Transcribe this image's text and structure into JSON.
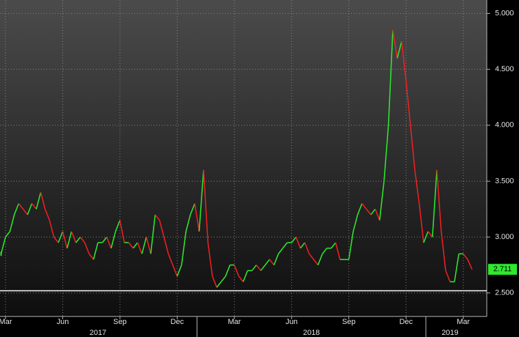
{
  "chart_data": {
    "type": "line",
    "categories": [
      null,
      "Mar",
      null,
      null,
      null,
      null,
      null,
      null,
      null,
      null,
      null,
      null,
      null,
      null,
      "Jun",
      null,
      null,
      null,
      null,
      null,
      null,
      null,
      null,
      null,
      null,
      null,
      null,
      "Sep",
      null,
      null,
      null,
      null,
      null,
      null,
      null,
      null,
      null,
      null,
      null,
      null,
      "Dec",
      null,
      null,
      null,
      null,
      null,
      null,
      null,
      null,
      null,
      null,
      null,
      null,
      "Mar",
      null,
      null,
      null,
      null,
      null,
      null,
      null,
      null,
      null,
      null,
      null,
      null,
      "Jun",
      null,
      null,
      null,
      null,
      null,
      null,
      null,
      null,
      null,
      null,
      null,
      null,
      "Sep",
      null,
      null,
      null,
      null,
      null,
      null,
      null,
      null,
      null,
      null,
      null,
      null,
      "Dec",
      null,
      null,
      null,
      null,
      null,
      null,
      null,
      null,
      null,
      null,
      null,
      null,
      "Mar",
      null,
      null
    ],
    "values": [
      2.85,
      3.0,
      3.05,
      3.2,
      3.3,
      3.25,
      3.2,
      3.3,
      3.25,
      3.4,
      3.25,
      3.15,
      3.0,
      2.95,
      3.05,
      2.9,
      3.05,
      2.95,
      3.0,
      2.95,
      2.85,
      2.8,
      2.95,
      2.95,
      3.0,
      2.9,
      3.05,
      3.15,
      2.95,
      2.95,
      2.9,
      2.95,
      2.85,
      3.0,
      2.85,
      3.2,
      3.15,
      3.0,
      2.85,
      2.75,
      2.65,
      2.75,
      3.05,
      3.2,
      3.3,
      3.05,
      3.6,
      2.95,
      2.65,
      2.55,
      2.6,
      2.65,
      2.75,
      2.75,
      2.65,
      2.6,
      2.7,
      2.7,
      2.75,
      2.7,
      2.75,
      2.8,
      2.75,
      2.85,
      2.9,
      2.95,
      2.95,
      3.0,
      2.9,
      2.95,
      2.85,
      2.8,
      2.75,
      2.85,
      2.9,
      2.9,
      2.95,
      2.8,
      2.8,
      2.8,
      3.05,
      3.2,
      3.3,
      3.25,
      3.2,
      3.25,
      3.15,
      3.5,
      4.0,
      4.85,
      4.6,
      4.75,
      4.4,
      4.0,
      3.6,
      3.3,
      2.95,
      3.05,
      3.0,
      3.6,
      3.05,
      2.7,
      2.6,
      2.6,
      2.85,
      2.85,
      2.8,
      2.711
    ],
    "last_value_label": "2.711",
    "year_groups": [
      {
        "label": "2017",
        "from": 0,
        "to": 44
      },
      {
        "label": "2018",
        "from": 45,
        "to": 96
      },
      {
        "label": "2019",
        "from": 97,
        "to": 107
      }
    ],
    "up_color": "#2ee82e",
    "down_color": "#f02020",
    "label_box_color": "#2ee82e",
    "ylim": [
      2.29,
      5.12
    ],
    "yticks": [
      {
        "value": 2.5,
        "label": "2.500"
      },
      {
        "value": 3,
        "label": "3.000"
      },
      {
        "value": 3.5,
        "label": "3.500"
      },
      {
        "value": 4,
        "label": "4.000"
      },
      {
        "value": 4.5,
        "label": "4.500"
      },
      {
        "value": 5,
        "label": "5.000"
      }
    ],
    "hline": 2.52,
    "grid": true
  }
}
